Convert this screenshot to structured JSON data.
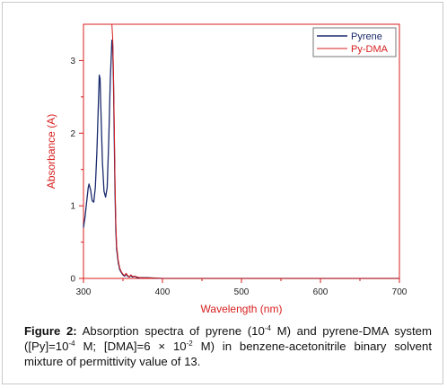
{
  "chart_data": {
    "type": "line",
    "xlabel": "Wavelength (nm)",
    "ylabel": "Absorbance (A)",
    "xlim": [
      300,
      700
    ],
    "ylim": [
      0,
      3.5
    ],
    "x_ticks": [
      300,
      400,
      500,
      600,
      700
    ],
    "y_ticks": [
      0,
      1,
      2,
      3
    ],
    "x_tick_labels": [
      "300",
      "400",
      "500",
      "600",
      "700"
    ],
    "y_tick_labels": [
      "0",
      "1",
      "2",
      "3"
    ],
    "grid": false,
    "legend_position": "top-right",
    "axis_color": "#d81e1e",
    "series": [
      {
        "name": "Pyrene",
        "color": "#1a2a6c",
        "x": [
          300,
          302,
          304,
          306,
          307,
          309,
          311,
          313,
          315,
          317,
          319,
          320,
          321,
          322,
          324,
          326,
          328,
          330,
          332,
          334,
          336,
          337,
          338,
          339,
          340,
          341,
          342,
          344,
          346,
          348,
          350,
          352,
          354,
          356,
          358,
          360,
          362,
          365,
          368,
          372,
          380,
          400,
          500,
          600,
          700
        ],
        "y": [
          0.7,
          0.85,
          1.05,
          1.25,
          1.3,
          1.22,
          1.07,
          1.05,
          1.25,
          1.75,
          2.45,
          2.8,
          2.75,
          2.35,
          1.6,
          1.2,
          1.12,
          1.25,
          1.9,
          2.75,
          3.28,
          3.22,
          2.7,
          1.9,
          1.15,
          0.65,
          0.4,
          0.22,
          0.12,
          0.08,
          0.05,
          0.03,
          0.06,
          0.03,
          0.02,
          0.04,
          0.02,
          0.03,
          0.01,
          0.01,
          0.01,
          0.0,
          0.0,
          0.0,
          0.0
        ]
      },
      {
        "name": "Py-DMA",
        "color": "#d81e1e",
        "x": [
          334,
          336,
          337,
          338,
          339,
          340,
          341,
          342,
          344,
          346,
          348,
          350,
          352,
          354,
          356,
          358,
          360,
          362,
          365,
          368,
          372,
          380,
          400,
          500,
          600,
          700
        ],
        "y": [
          3.5,
          3.5,
          3.3,
          2.8,
          2.1,
          1.3,
          0.75,
          0.45,
          0.25,
          0.14,
          0.09,
          0.06,
          0.04,
          0.07,
          0.04,
          0.02,
          0.05,
          0.03,
          0.03,
          0.02,
          0.01,
          0.01,
          0.0,
          0.0,
          0.0,
          0.0
        ]
      }
    ]
  },
  "caption": {
    "label": "Figure 2:",
    "t1": "Absorption spectra of pyrene (10",
    "s1": "-4",
    "t2": " M) and pyrene-DMA system ([Py]=10",
    "s2": "-4",
    "t3": " M; [DMA]=6 × 10",
    "s3": "-2",
    "t4": " M) in benzene-acetonitrile binary solvent mixture of permittivity value of 13."
  }
}
